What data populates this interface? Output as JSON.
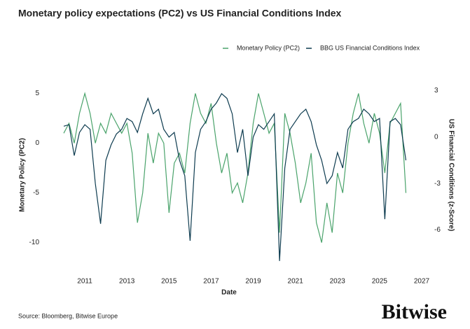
{
  "chart_data": {
    "type": "line",
    "title": "Monetary policy expectations (PC2) vs US Financial Conditions Index",
    "xlabel": "Date",
    "ylabel": "Monetary Policy (PC2)",
    "y2label": "US Financial Conditions (z-Score)",
    "source": "Source: Bloomberg, Bitwise Europe",
    "logo": "Bitwise",
    "xlim": [
      2009.9,
      2027.1
    ],
    "xticks": [
      2011,
      2013,
      2015,
      2017,
      2019,
      2021,
      2023,
      2025,
      2027
    ],
    "ylim": [
      -12,
      5.6
    ],
    "yticks": [
      5,
      0,
      -5,
      -10
    ],
    "y2lim": [
      -8.1,
      3.2
    ],
    "y2ticks": [
      3,
      0,
      -3,
      -6
    ],
    "x": [
      2010,
      2010.25,
      2010.5,
      2010.75,
      2011,
      2011.25,
      2011.5,
      2011.75,
      2012,
      2012.25,
      2012.5,
      2012.75,
      2013,
      2013.25,
      2013.5,
      2013.75,
      2014,
      2014.25,
      2014.5,
      2014.75,
      2015,
      2015.25,
      2015.5,
      2015.75,
      2016,
      2016.25,
      2016.5,
      2016.75,
      2017,
      2017.25,
      2017.5,
      2017.75,
      2018,
      2018.25,
      2018.5,
      2018.75,
      2019,
      2019.25,
      2019.5,
      2019.75,
      2020,
      2020.25,
      2020.5,
      2020.75,
      2021,
      2021.25,
      2021.5,
      2021.75,
      2022,
      2022.25,
      2022.5,
      2022.75,
      2023,
      2023.25,
      2023.5,
      2023.75,
      2024,
      2024.25,
      2024.5,
      2024.75,
      2025,
      2025.25,
      2025.5,
      2025.75,
      2026,
      2026.25
    ],
    "series": [
      {
        "name": "Monetary Policy (PC2)",
        "color": "#4aa36b",
        "values": [
          1,
          2,
          0,
          3,
          5,
          3,
          0,
          2,
          1,
          3,
          2,
          1,
          2,
          -1,
          -8,
          -5,
          1,
          -2,
          1,
          0,
          -7,
          -2,
          -1,
          -3,
          2,
          5,
          3,
          2,
          4,
          0,
          -3,
          -1,
          -5,
          -4,
          -6,
          -3,
          2,
          5,
          3,
          1,
          2,
          -9,
          3,
          1,
          -2,
          -6,
          -4,
          -1,
          -8,
          -10,
          -6,
          -9,
          -3,
          -5,
          0,
          3,
          5,
          2,
          0,
          3,
          1,
          -3,
          2,
          3,
          4,
          -5
        ]
      },
      {
        "name": "BBG US Financial Conditions Index",
        "color": "#0d3b4f",
        "axis": "y2",
        "values": [
          0.7,
          0.8,
          -1.2,
          0.3,
          0.8,
          0.5,
          -3,
          -5.6,
          -1.5,
          -0.5,
          0.2,
          0.5,
          1.2,
          1.0,
          0.3,
          1.5,
          2.5,
          1.5,
          1.8,
          0.5,
          0,
          0.3,
          -1.5,
          -2.5,
          -6.7,
          -1.0,
          0.5,
          1.0,
          1.8,
          2.2,
          2.8,
          2.5,
          1.5,
          -1.0,
          0.5,
          -2.5,
          0,
          0.8,
          0.5,
          1.0,
          1.5,
          -8,
          -2,
          0.5,
          1.0,
          1.5,
          1.8,
          1.0,
          -0.5,
          -1.5,
          -3,
          -2.5,
          -1,
          -2,
          0.5,
          1,
          1.2,
          1.8,
          1.5,
          1.0,
          1.2,
          -5.3,
          1.0,
          1.2,
          0.8,
          -1.5
        ]
      }
    ]
  }
}
